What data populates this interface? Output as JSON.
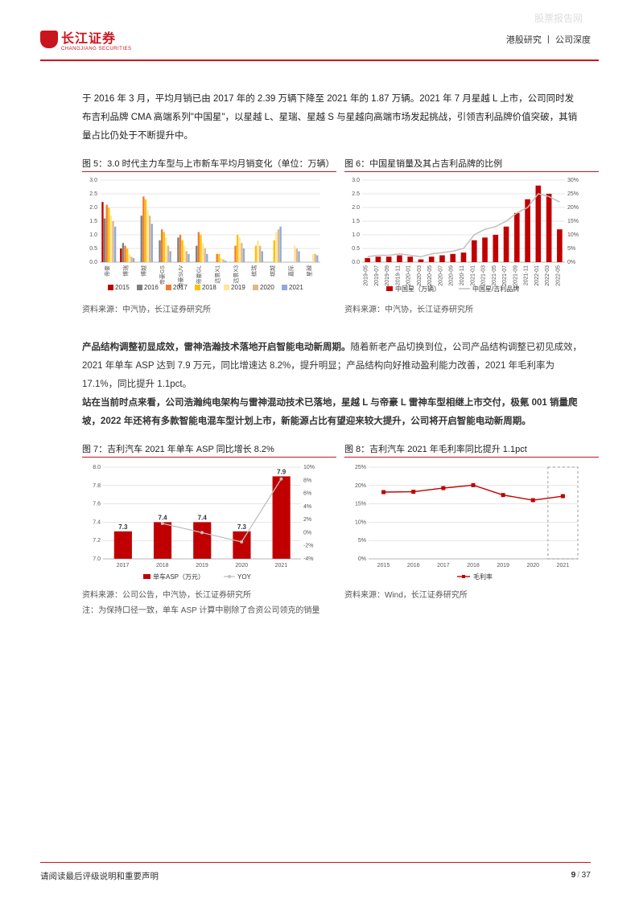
{
  "watermark": "股票报告网",
  "header": {
    "logo_cn": "长江证券",
    "logo_en": "CHANGJIANG SECURITIES",
    "right": "港股研究 丨 公司深度"
  },
  "para1": "于 2016 年 3 月，平均月销已由 2017 年的 2.39 万辆下降至 2021 年的 1.87 万辆。2021 年 7 月星越 L 上市，公司同时发布吉利品牌 CMA 高端系列\"中国星\"，以星越 L、星瑞、星越 S 与星越向高端市场发起挑战，引领吉利品牌价值突破，其销量占比仍处于不断提升中。",
  "fig5": {
    "title": "图 5：3.0 时代主力车型与上市新车平均月销变化（单位：万辆）",
    "categories": [
      "帝豪",
      "博瑞",
      "博越",
      "帝豪GS",
      "帝豪SUV",
      "帝豪GL",
      "远景X1",
      "远景X3",
      "缤瑞",
      "缤越",
      "嘉际",
      "星越"
    ],
    "years": [
      "2015",
      "2016",
      "2017",
      "2018",
      "2019",
      "2020",
      "2021"
    ],
    "colors": [
      "#c00000",
      "#7f7f7f",
      "#ed7d31",
      "#ffc000",
      "#ffe699",
      "#deb887",
      "#8faadc"
    ],
    "ylim": [
      0,
      3.0
    ],
    "ytick": 0.5,
    "data": [
      [
        2.2,
        1.6,
        2.1,
        2.0,
        1.7,
        1.5,
        1.3
      ],
      [
        0.5,
        0.7,
        0.6,
        0.5,
        0.3,
        0.2,
        0.15
      ],
      [
        null,
        1.7,
        2.4,
        2.3,
        1.9,
        1.7,
        1.4
      ],
      [
        null,
        0.8,
        1.2,
        1.1,
        0.9,
        0.6,
        0.4
      ],
      [
        null,
        0.9,
        1.0,
        0.8,
        0.6,
        0.4,
        0.3
      ],
      [
        null,
        0.6,
        1.1,
        1.0,
        0.7,
        0.5,
        0.3
      ],
      [
        null,
        null,
        0.3,
        0.3,
        0.15,
        0.1,
        0.05
      ],
      [
        null,
        null,
        0.6,
        1.0,
        0.9,
        0.7,
        0.5
      ],
      [
        null,
        null,
        null,
        0.6,
        0.8,
        0.6,
        0.4
      ],
      [
        null,
        null,
        null,
        0.8,
        1.1,
        1.2,
        1.3
      ],
      [
        null,
        null,
        null,
        null,
        0.6,
        0.5,
        0.4
      ],
      [
        null,
        null,
        null,
        null,
        0.3,
        0.3,
        0.25
      ]
    ],
    "source": "资料来源：中汽协，长江证券研究所"
  },
  "fig6": {
    "title": "图 6：中国星销量及其占吉利品牌的比例",
    "xlabels": [
      "2019-05",
      "2019-07",
      "2019-09",
      "2019-11",
      "2020-01",
      "2020-03",
      "2020-05",
      "2020-07",
      "2020-09",
      "2020-11",
      "2021-01",
      "2021-03",
      "2021-05",
      "2021-07",
      "2021-09",
      "2021-11",
      "2022-01",
      "2022-03",
      "2022-05"
    ],
    "bars": [
      0.15,
      0.2,
      0.2,
      0.25,
      0.2,
      0.1,
      0.2,
      0.25,
      0.3,
      0.35,
      0.8,
      0.9,
      1.0,
      1.3,
      1.8,
      2.3,
      2.8,
      2.5,
      1.2
    ],
    "line": [
      2,
      2.5,
      2.5,
      3,
      2.5,
      2,
      3,
      3.5,
      4,
      5,
      10,
      12,
      13,
      15,
      18,
      20,
      25,
      24,
      22
    ],
    "ylim_l": [
      0,
      3.0
    ],
    "ytick_l": 0.5,
    "ylim_r": [
      0,
      30
    ],
    "ytick_r": 5,
    "bar_color": "#c00000",
    "line_color": "#bfbfbf",
    "leg_bar": "中国星（万辆）",
    "leg_line": "中国星/吉利品牌",
    "source": "资料来源：中汽协，长江证券研究所"
  },
  "para2": {
    "b1": "产品结构调整初显成效，雷神浩瀚技术落地开启智能电动新周期。",
    "t1": "随着新老产品切换到位，公司产品结构调整已初见成效，2021 年单车 ASP 达到 7.9 万元，同比增速达 8.2%，提升明显；产品结构向好推动盈利能力改善，2021 年毛利率为 17.1%，同比提升 1.1pct。",
    "b2": "站在当前时点来看，公司浩瀚纯电架构与雷神混动技术已落地，星越 L 与帝豪 L 雷神车型相继上市交付，极氪 001 销量爬坡，2022 年还将有多款智能电混车型计划上市，新能源占比有望迎来较大提升，公司将开启智能电动新周期。"
  },
  "fig7": {
    "title": "图 7：吉利汽车 2021 年单车 ASP 同比增长 8.2%",
    "years": [
      "2017",
      "2018",
      "2019",
      "2020",
      "2021"
    ],
    "asp": [
      7.3,
      7.4,
      7.4,
      7.3,
      7.9
    ],
    "yoy": [
      null,
      1.4,
      0.0,
      -1.4,
      8.2
    ],
    "ylim_l": [
      7.0,
      8.0
    ],
    "ytick_l": 0.2,
    "ylim_r": [
      -4,
      10
    ],
    "ytick_r": 2,
    "bar_color": "#c00000",
    "line_color": "#bfbfbf",
    "leg_bar": "单车ASP（万元）",
    "leg_line": "YOY",
    "source": "资料来源：公司公告，中汽协，长江证券研究所",
    "note": "注：为保持口径一致，单车 ASP 计算中剔除了合资公司领克的销量"
  },
  "fig8": {
    "title": "图 8：吉利汽车 2021 年毛利率同比提升 1.1pct",
    "years": [
      "2015",
      "2016",
      "2017",
      "2018",
      "2019",
      "2020",
      "2021"
    ],
    "gm": [
      18.2,
      18.3,
      19.3,
      20.1,
      17.4,
      16.0,
      17.1
    ],
    "ylim": [
      0,
      25
    ],
    "ytick": 5,
    "color": "#c00000",
    "leg": "毛利率",
    "source": "资料来源：Wind，长江证券研究所"
  },
  "footer": {
    "left": "请阅读最后评级说明和重要声明",
    "page": "9",
    "total": "37"
  }
}
